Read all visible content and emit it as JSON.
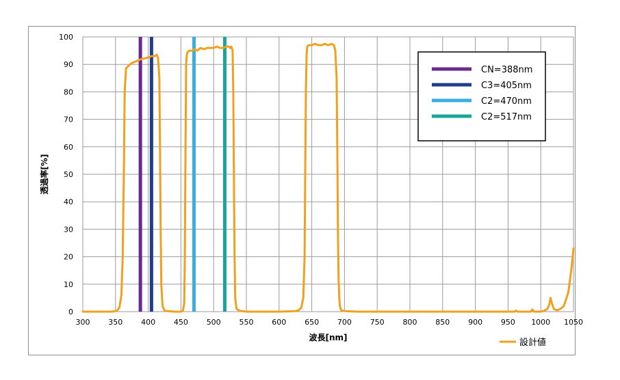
{
  "chart_data": {
    "type": "line",
    "xlabel": "波長[nm]",
    "ylabel": "透過率[%]",
    "xlim": [
      300,
      1050
    ],
    "ylim": [
      0,
      100
    ],
    "xticks": [
      300,
      350,
      400,
      450,
      500,
      550,
      600,
      650,
      700,
      750,
      800,
      850,
      900,
      950,
      1000,
      1050
    ],
    "yticks": [
      0,
      10,
      20,
      30,
      40,
      50,
      60,
      70,
      80,
      90,
      100
    ],
    "grid": true,
    "series": [
      {
        "name": "設計値",
        "color": "#f0a01e",
        "x": [
          300,
          345,
          352,
          356,
          359,
          361,
          363,
          364,
          366,
          370,
          375,
          380,
          385,
          390,
          395,
          400,
          403,
          405,
          410,
          413,
          415,
          417,
          418,
          419,
          420,
          422,
          425,
          440,
          450,
          453,
          455,
          456,
          457,
          458,
          459,
          460,
          463,
          467,
          471,
          475,
          480,
          485,
          490,
          495,
          500,
          505,
          510,
          515,
          520,
          523,
          525,
          527,
          529,
          530,
          531,
          532,
          533,
          535,
          540,
          550,
          600,
          625,
          630,
          634,
          637,
          639,
          640,
          641,
          642,
          643,
          645,
          650,
          655,
          660,
          665,
          670,
          675,
          680,
          684,
          686,
          688,
          689,
          690,
          691,
          692,
          693,
          695,
          700,
          720,
          800,
          900,
          960,
          962,
          965,
          985,
          987,
          990,
          1000,
          1005,
          1010,
          1013,
          1015,
          1017,
          1020,
          1025,
          1030,
          1035,
          1038,
          1042,
          1045,
          1048,
          1050
        ],
        "y": [
          0,
          0,
          0.3,
          1.5,
          6,
          20,
          55,
          80,
          88.5,
          89.5,
          90.5,
          91,
          91.5,
          92,
          92.2,
          92.5,
          92.8,
          93,
          93,
          93.5,
          92.5,
          85,
          60,
          30,
          10,
          2,
          0.3,
          0,
          0,
          0.3,
          3,
          20,
          60,
          90,
          93.5,
          94.5,
          95,
          95,
          95.5,
          95,
          96,
          95.5,
          96,
          96,
          96,
          96.5,
          96,
          96,
          96.5,
          96.5,
          96,
          96.5,
          95,
          80,
          50,
          20,
          5,
          1,
          0.3,
          0,
          0,
          0.2,
          0.5,
          1.5,
          5,
          20,
          50,
          80,
          93,
          96.5,
          97,
          97,
          97.5,
          97,
          97,
          97.5,
          97,
          97.5,
          97,
          95,
          85,
          60,
          30,
          12,
          5,
          2,
          0.5,
          0.2,
          0,
          0,
          0,
          0,
          0.4,
          0,
          0,
          0.8,
          0,
          0,
          0.3,
          1,
          2.5,
          5,
          3,
          1,
          0.5,
          1,
          2,
          4,
          7,
          12,
          18,
          23
        ]
      }
    ],
    "reference_lines": [
      {
        "name": "CN=388nm",
        "x": 388,
        "color": "#6a2a8c"
      },
      {
        "name": "C3=405nm",
        "x": 405,
        "color": "#1f3d8c"
      },
      {
        "name": "C2=470nm",
        "x": 470,
        "color": "#3aaee0"
      },
      {
        "name": "C2=517nm",
        "x": 517,
        "color": "#1aa59a"
      }
    ]
  }
}
